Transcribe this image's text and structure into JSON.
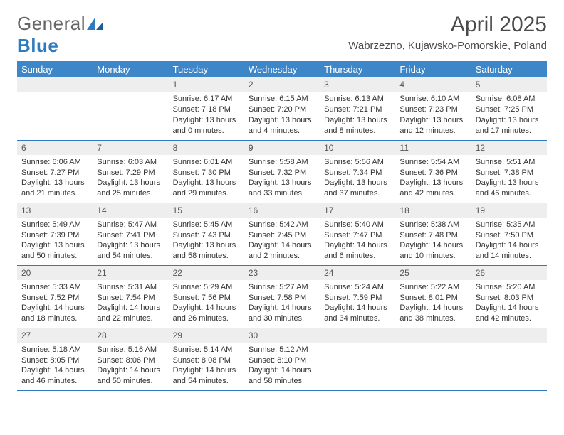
{
  "brand": {
    "name_left": "General",
    "name_right": "Blue"
  },
  "title": {
    "month": "April 2025",
    "location": "Wabrzezno, Kujawsko-Pomorskie, Poland"
  },
  "colors": {
    "header_bg": "#3d87c9",
    "rule": "#2f7bbf",
    "daybar": "#eeeeee",
    "text": "#333333"
  },
  "day_names": [
    "Sunday",
    "Monday",
    "Tuesday",
    "Wednesday",
    "Thursday",
    "Friday",
    "Saturday"
  ],
  "weeks": [
    [
      {
        "n": "",
        "sunrise": "",
        "sunset": "",
        "daylight": ""
      },
      {
        "n": "",
        "sunrise": "",
        "sunset": "",
        "daylight": ""
      },
      {
        "n": "1",
        "sunrise": "Sunrise: 6:17 AM",
        "sunset": "Sunset: 7:18 PM",
        "daylight": "Daylight: 13 hours and 0 minutes."
      },
      {
        "n": "2",
        "sunrise": "Sunrise: 6:15 AM",
        "sunset": "Sunset: 7:20 PM",
        "daylight": "Daylight: 13 hours and 4 minutes."
      },
      {
        "n": "3",
        "sunrise": "Sunrise: 6:13 AM",
        "sunset": "Sunset: 7:21 PM",
        "daylight": "Daylight: 13 hours and 8 minutes."
      },
      {
        "n": "4",
        "sunrise": "Sunrise: 6:10 AM",
        "sunset": "Sunset: 7:23 PM",
        "daylight": "Daylight: 13 hours and 12 minutes."
      },
      {
        "n": "5",
        "sunrise": "Sunrise: 6:08 AM",
        "sunset": "Sunset: 7:25 PM",
        "daylight": "Daylight: 13 hours and 17 minutes."
      }
    ],
    [
      {
        "n": "6",
        "sunrise": "Sunrise: 6:06 AM",
        "sunset": "Sunset: 7:27 PM",
        "daylight": "Daylight: 13 hours and 21 minutes."
      },
      {
        "n": "7",
        "sunrise": "Sunrise: 6:03 AM",
        "sunset": "Sunset: 7:29 PM",
        "daylight": "Daylight: 13 hours and 25 minutes."
      },
      {
        "n": "8",
        "sunrise": "Sunrise: 6:01 AM",
        "sunset": "Sunset: 7:30 PM",
        "daylight": "Daylight: 13 hours and 29 minutes."
      },
      {
        "n": "9",
        "sunrise": "Sunrise: 5:58 AM",
        "sunset": "Sunset: 7:32 PM",
        "daylight": "Daylight: 13 hours and 33 minutes."
      },
      {
        "n": "10",
        "sunrise": "Sunrise: 5:56 AM",
        "sunset": "Sunset: 7:34 PM",
        "daylight": "Daylight: 13 hours and 37 minutes."
      },
      {
        "n": "11",
        "sunrise": "Sunrise: 5:54 AM",
        "sunset": "Sunset: 7:36 PM",
        "daylight": "Daylight: 13 hours and 42 minutes."
      },
      {
        "n": "12",
        "sunrise": "Sunrise: 5:51 AM",
        "sunset": "Sunset: 7:38 PM",
        "daylight": "Daylight: 13 hours and 46 minutes."
      }
    ],
    [
      {
        "n": "13",
        "sunrise": "Sunrise: 5:49 AM",
        "sunset": "Sunset: 7:39 PM",
        "daylight": "Daylight: 13 hours and 50 minutes."
      },
      {
        "n": "14",
        "sunrise": "Sunrise: 5:47 AM",
        "sunset": "Sunset: 7:41 PM",
        "daylight": "Daylight: 13 hours and 54 minutes."
      },
      {
        "n": "15",
        "sunrise": "Sunrise: 5:45 AM",
        "sunset": "Sunset: 7:43 PM",
        "daylight": "Daylight: 13 hours and 58 minutes."
      },
      {
        "n": "16",
        "sunrise": "Sunrise: 5:42 AM",
        "sunset": "Sunset: 7:45 PM",
        "daylight": "Daylight: 14 hours and 2 minutes."
      },
      {
        "n": "17",
        "sunrise": "Sunrise: 5:40 AM",
        "sunset": "Sunset: 7:47 PM",
        "daylight": "Daylight: 14 hours and 6 minutes."
      },
      {
        "n": "18",
        "sunrise": "Sunrise: 5:38 AM",
        "sunset": "Sunset: 7:48 PM",
        "daylight": "Daylight: 14 hours and 10 minutes."
      },
      {
        "n": "19",
        "sunrise": "Sunrise: 5:35 AM",
        "sunset": "Sunset: 7:50 PM",
        "daylight": "Daylight: 14 hours and 14 minutes."
      }
    ],
    [
      {
        "n": "20",
        "sunrise": "Sunrise: 5:33 AM",
        "sunset": "Sunset: 7:52 PM",
        "daylight": "Daylight: 14 hours and 18 minutes."
      },
      {
        "n": "21",
        "sunrise": "Sunrise: 5:31 AM",
        "sunset": "Sunset: 7:54 PM",
        "daylight": "Daylight: 14 hours and 22 minutes."
      },
      {
        "n": "22",
        "sunrise": "Sunrise: 5:29 AM",
        "sunset": "Sunset: 7:56 PM",
        "daylight": "Daylight: 14 hours and 26 minutes."
      },
      {
        "n": "23",
        "sunrise": "Sunrise: 5:27 AM",
        "sunset": "Sunset: 7:58 PM",
        "daylight": "Daylight: 14 hours and 30 minutes."
      },
      {
        "n": "24",
        "sunrise": "Sunrise: 5:24 AM",
        "sunset": "Sunset: 7:59 PM",
        "daylight": "Daylight: 14 hours and 34 minutes."
      },
      {
        "n": "25",
        "sunrise": "Sunrise: 5:22 AM",
        "sunset": "Sunset: 8:01 PM",
        "daylight": "Daylight: 14 hours and 38 minutes."
      },
      {
        "n": "26",
        "sunrise": "Sunrise: 5:20 AM",
        "sunset": "Sunset: 8:03 PM",
        "daylight": "Daylight: 14 hours and 42 minutes."
      }
    ],
    [
      {
        "n": "27",
        "sunrise": "Sunrise: 5:18 AM",
        "sunset": "Sunset: 8:05 PM",
        "daylight": "Daylight: 14 hours and 46 minutes."
      },
      {
        "n": "28",
        "sunrise": "Sunrise: 5:16 AM",
        "sunset": "Sunset: 8:06 PM",
        "daylight": "Daylight: 14 hours and 50 minutes."
      },
      {
        "n": "29",
        "sunrise": "Sunrise: 5:14 AM",
        "sunset": "Sunset: 8:08 PM",
        "daylight": "Daylight: 14 hours and 54 minutes."
      },
      {
        "n": "30",
        "sunrise": "Sunrise: 5:12 AM",
        "sunset": "Sunset: 8:10 PM",
        "daylight": "Daylight: 14 hours and 58 minutes."
      },
      {
        "n": "",
        "sunrise": "",
        "sunset": "",
        "daylight": ""
      },
      {
        "n": "",
        "sunrise": "",
        "sunset": "",
        "daylight": ""
      },
      {
        "n": "",
        "sunrise": "",
        "sunset": "",
        "daylight": ""
      }
    ]
  ]
}
